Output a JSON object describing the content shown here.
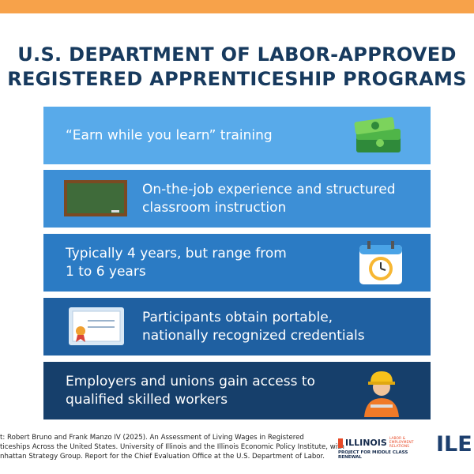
{
  "header": {
    "title_lines": [
      "U.S. DEPARTMENT OF LABOR-APPROVED",
      "REGISTERED APPRENTICESHIP PROGRAMS"
    ]
  },
  "items": [
    {
      "text_lines": [
        "“Earn while you learn” training"
      ]
    },
    {
      "text_lines": [
        "On-the-job experience and structured",
        "classroom instruction"
      ]
    },
    {
      "text_lines": [
        "Typically 4 years, but range from",
        "1 to 6 years"
      ]
    },
    {
      "text_lines": [
        "Participants obtain portable,",
        "nationally recognized credentials"
      ]
    },
    {
      "text_lines": [
        "Employers and unions gain access to",
        "qualified skilled workers"
      ]
    }
  ],
  "footer": {
    "source_lines": [
      "t: Robert Bruno and Frank Manzo IV (2025). An Assessment of Living Wages in Registered",
      "ticeships Across the United States. University of Illinois and the Illinois Economic Policy Institute, with",
      "nhattan Strategy Group. Report for the Chief Evaluation Office at the U.S. Department of Labor."
    ],
    "logo_illinois": "ILLINOIS",
    "logo_ler": "LABOR & EMPLOYMENT RELATIONS",
    "logo_project": "PROJECT FOR MIDDLE CLASS RENEWAL",
    "logo_ile": "ILE"
  }
}
